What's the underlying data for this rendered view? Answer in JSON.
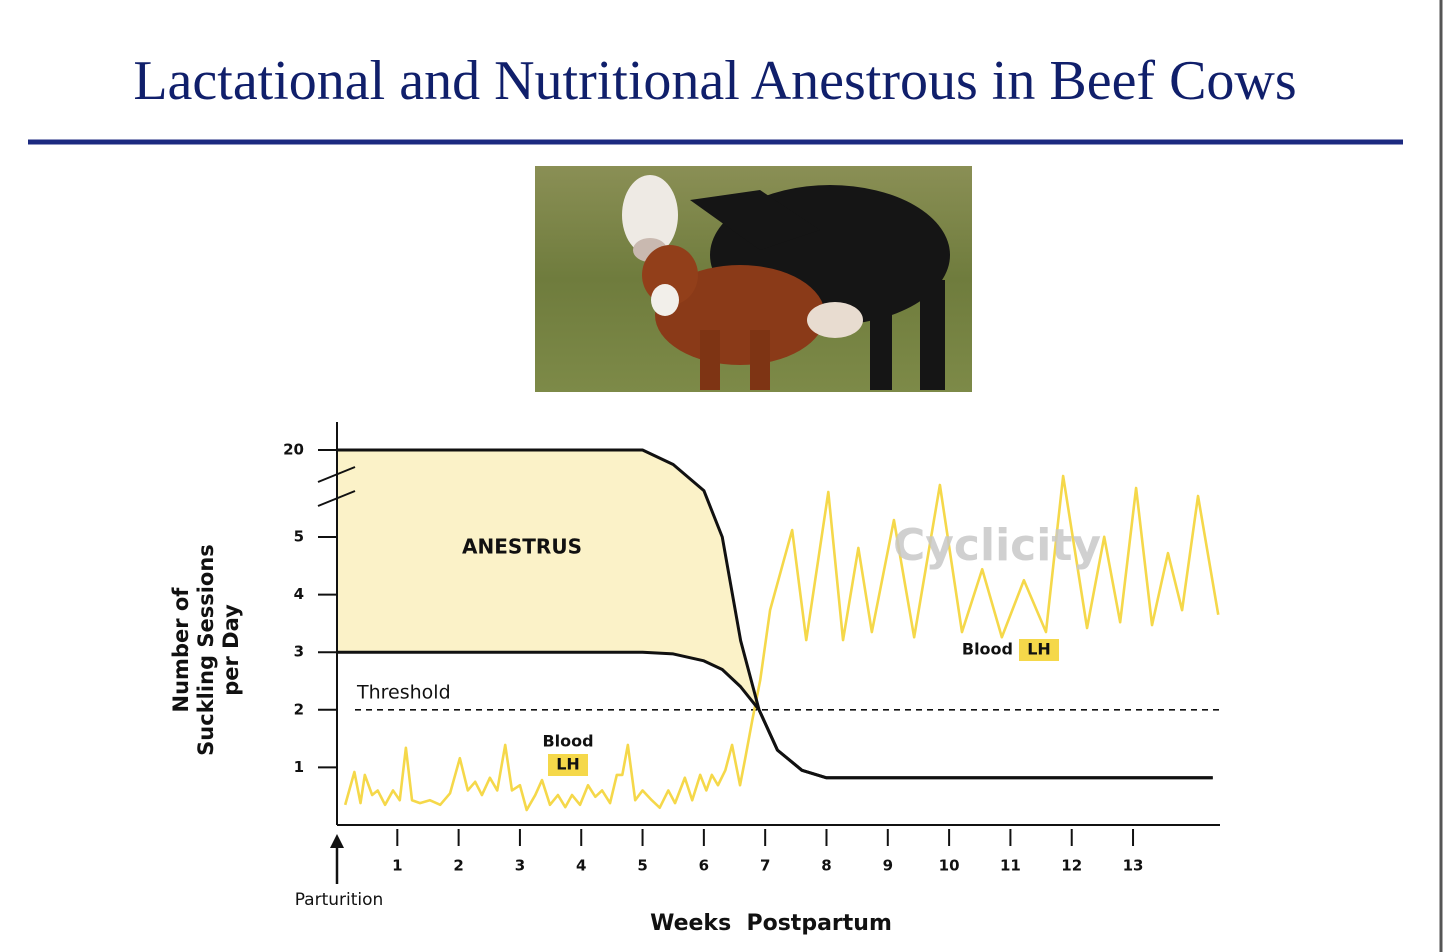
{
  "title": "Lactational and Nutritional Anestrous in Beef Cows",
  "chart_data": {
    "type": "line",
    "x_label": "Weeks  Postpartum",
    "y_label": [
      "Number of",
      "Suckling Sessions",
      "per Day"
    ],
    "xlim": [
      0,
      14.5
    ],
    "xticks": [
      1,
      2,
      3,
      4,
      5,
      6,
      7,
      8,
      9,
      10,
      11,
      12,
      13
    ],
    "ylim": [
      0,
      20
    ],
    "y_break": [
      5,
      20
    ],
    "yticks": [
      1,
      2,
      3,
      4,
      5,
      20
    ],
    "threshold": {
      "value": 2,
      "label": "Threshold"
    },
    "fill_color": "#fbf2c8",
    "annotations": {
      "anestrus": "ANESTRUS",
      "cyclicity": "Cyclicity",
      "blood_1": "Blood",
      "lh_1": "LH",
      "blood_2": "Blood",
      "lh_2": "LH",
      "parturition": "Parturition"
    },
    "series": [
      {
        "color": "#111111",
        "x": [
          0,
          1,
          2,
          3,
          4,
          4.5,
          5,
          5.5,
          6,
          6.3,
          6.6,
          6.9,
          7.2,
          7.6,
          8,
          9,
          10,
          11,
          12,
          13,
          14.3
        ],
        "values": [
          20,
          20,
          20,
          20,
          20,
          20,
          20,
          17.5,
          13,
          5,
          3.2,
          2.0,
          1.3,
          0.95,
          0.82,
          0.82,
          0.82,
          0.82,
          0.82,
          0.82,
          0.82
        ]
      },
      {
        "color": "#111111",
        "x": [
          0,
          1,
          2,
          3,
          4,
          4.5,
          5,
          5.5,
          6,
          6.3,
          6.6,
          6.9,
          7.2,
          7.6,
          8,
          9,
          10,
          11,
          12,
          13,
          14.3
        ],
        "values": [
          3,
          3,
          3,
          3,
          3,
          3,
          3,
          2.97,
          2.85,
          2.7,
          2.4,
          2.0,
          1.3,
          0.95,
          0.82,
          0.82,
          0.82,
          0.82,
          0.82,
          0.82,
          0.82
        ]
      },
      {
        "color": "#f5d84a",
        "x": [
          0.15,
          0.3,
          0.4,
          0.47,
          0.59,
          0.68,
          0.8,
          0.93,
          1.04,
          1.14,
          1.24,
          1.37,
          1.53,
          1.7,
          1.86,
          2.02,
          2.15,
          2.27,
          2.38,
          2.51,
          2.63,
          2.76,
          2.87,
          3.0,
          3.11,
          3.25,
          3.36,
          3.49,
          3.62,
          3.74,
          3.85,
          3.98,
          4.11,
          4.23,
          4.34,
          4.47,
          4.58,
          4.67,
          4.76,
          4.88,
          5.0,
          5.15,
          5.28,
          5.42,
          5.53,
          5.69,
          5.81,
          5.94,
          6.04,
          6.13,
          6.23,
          6.35,
          6.46,
          6.59,
          6.67,
          6.79,
          6.92,
          7.08,
          7.44,
          7.67,
          8.03,
          8.27,
          8.52,
          8.74,
          9.1,
          9.43,
          9.85,
          10.21,
          10.54,
          10.86,
          11.22,
          11.58,
          11.86,
          12.25,
          12.53,
          12.79,
          13.05,
          13.31,
          13.57,
          13.8,
          14.06,
          14.39
        ],
        "values": [
          0.35,
          0.92,
          0.38,
          0.87,
          0.52,
          0.6,
          0.35,
          0.6,
          0.43,
          1.34,
          0.43,
          0.38,
          0.43,
          0.35,
          0.55,
          1.16,
          0.6,
          0.75,
          0.52,
          0.82,
          0.6,
          1.39,
          0.6,
          0.69,
          0.26,
          0.52,
          0.78,
          0.35,
          0.52,
          0.31,
          0.52,
          0.35,
          0.69,
          0.49,
          0.6,
          0.38,
          0.87,
          0.87,
          1.39,
          0.43,
          0.6,
          0.43,
          0.3,
          0.6,
          0.38,
          0.82,
          0.43,
          0.87,
          0.6,
          0.87,
          0.69,
          0.95,
          1.39,
          0.69,
          1.13,
          1.82,
          2.52,
          3.73,
          6.2,
          3.21,
          12.76,
          3.21,
          4.81,
          3.35,
          7.93,
          3.26,
          13.97,
          3.35,
          4.44,
          3.26,
          4.25,
          3.35,
          15.52,
          3.42,
          5.03,
          3.52,
          13.45,
          3.47,
          4.72,
          3.73,
          12.07,
          3.65
        ]
      }
    ]
  }
}
